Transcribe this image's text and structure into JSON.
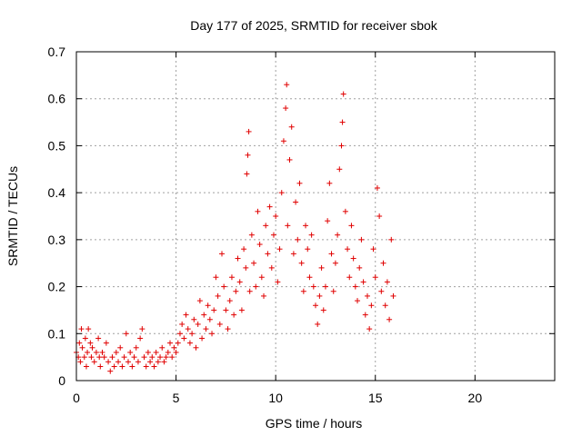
{
  "chart_data": {
    "type": "scatter",
    "title": "Day 177 of 2025, SRMTID for receiver sbok",
    "xlabel": "GPS time / hours",
    "ylabel": "SRMTID / TECUs",
    "xlim": [
      0,
      24
    ],
    "ylim": [
      0,
      0.7
    ],
    "x_ticks": [
      0,
      5,
      10,
      15,
      20
    ],
    "x_tick_labels": [
      "0",
      "5",
      "10",
      "15",
      "20"
    ],
    "y_ticks": [
      0,
      0.1,
      0.2,
      0.3,
      0.4,
      0.5,
      0.6,
      0.7
    ],
    "y_tick_labels": [
      "0",
      "0.1",
      "0.2",
      "0.3",
      "0.4",
      "0.5",
      "0.6",
      "0.7"
    ],
    "grid": true,
    "marker": "+",
    "marker_color": "#e00000",
    "series": [
      {
        "name": "SRMTID",
        "points": [
          [
            0.0,
            0.06
          ],
          [
            0.1,
            0.05
          ],
          [
            0.15,
            0.08
          ],
          [
            0.2,
            0.04
          ],
          [
            0.25,
            0.11
          ],
          [
            0.3,
            0.07
          ],
          [
            0.4,
            0.05
          ],
          [
            0.45,
            0.09
          ],
          [
            0.5,
            0.03
          ],
          [
            0.55,
            0.06
          ],
          [
            0.6,
            0.11
          ],
          [
            0.7,
            0.08
          ],
          [
            0.75,
            0.05
          ],
          [
            0.8,
            0.07
          ],
          [
            0.9,
            0.04
          ],
          [
            1.0,
            0.06
          ],
          [
            1.1,
            0.09
          ],
          [
            1.15,
            0.05
          ],
          [
            1.2,
            0.03
          ],
          [
            1.3,
            0.06
          ],
          [
            1.4,
            0.05
          ],
          [
            1.5,
            0.08
          ],
          [
            1.6,
            0.04
          ],
          [
            1.7,
            0.02
          ],
          [
            1.8,
            0.05
          ],
          [
            1.9,
            0.03
          ],
          [
            2.0,
            0.06
          ],
          [
            2.1,
            0.04
          ],
          [
            2.2,
            0.07
          ],
          [
            2.3,
            0.03
          ],
          [
            2.4,
            0.05
          ],
          [
            2.5,
            0.1
          ],
          [
            2.6,
            0.04
          ],
          [
            2.7,
            0.06
          ],
          [
            2.8,
            0.03
          ],
          [
            2.9,
            0.05
          ],
          [
            3.0,
            0.07
          ],
          [
            3.1,
            0.04
          ],
          [
            3.2,
            0.09
          ],
          [
            3.3,
            0.11
          ],
          [
            3.4,
            0.05
          ],
          [
            3.5,
            0.03
          ],
          [
            3.6,
            0.06
          ],
          [
            3.7,
            0.04
          ],
          [
            3.8,
            0.05
          ],
          [
            3.9,
            0.03
          ],
          [
            4.0,
            0.06
          ],
          [
            4.1,
            0.04
          ],
          [
            4.2,
            0.05
          ],
          [
            4.3,
            0.07
          ],
          [
            4.4,
            0.04
          ],
          [
            4.5,
            0.05
          ],
          [
            4.6,
            0.06
          ],
          [
            4.7,
            0.08
          ],
          [
            4.8,
            0.05
          ],
          [
            4.9,
            0.07
          ],
          [
            5.0,
            0.06
          ],
          [
            5.1,
            0.08
          ],
          [
            5.2,
            0.1
          ],
          [
            5.3,
            0.12
          ],
          [
            5.4,
            0.09
          ],
          [
            5.5,
            0.14
          ],
          [
            5.6,
            0.11
          ],
          [
            5.7,
            0.08
          ],
          [
            5.8,
            0.1
          ],
          [
            5.9,
            0.13
          ],
          [
            6.0,
            0.07
          ],
          [
            6.1,
            0.12
          ],
          [
            6.2,
            0.17
          ],
          [
            6.3,
            0.09
          ],
          [
            6.4,
            0.14
          ],
          [
            6.5,
            0.11
          ],
          [
            6.6,
            0.16
          ],
          [
            6.7,
            0.13
          ],
          [
            6.8,
            0.1
          ],
          [
            6.9,
            0.15
          ],
          [
            7.0,
            0.22
          ],
          [
            7.1,
            0.18
          ],
          [
            7.2,
            0.12
          ],
          [
            7.3,
            0.27
          ],
          [
            7.4,
            0.2
          ],
          [
            7.5,
            0.15
          ],
          [
            7.6,
            0.11
          ],
          [
            7.7,
            0.17
          ],
          [
            7.8,
            0.22
          ],
          [
            7.9,
            0.14
          ],
          [
            8.0,
            0.19
          ],
          [
            8.1,
            0.26
          ],
          [
            8.2,
            0.21
          ],
          [
            8.3,
            0.15
          ],
          [
            8.4,
            0.28
          ],
          [
            8.5,
            0.24
          ],
          [
            8.55,
            0.44
          ],
          [
            8.6,
            0.48
          ],
          [
            8.65,
            0.53
          ],
          [
            8.7,
            0.19
          ],
          [
            8.8,
            0.31
          ],
          [
            8.9,
            0.25
          ],
          [
            9.0,
            0.2
          ],
          [
            9.1,
            0.36
          ],
          [
            9.2,
            0.29
          ],
          [
            9.3,
            0.22
          ],
          [
            9.4,
            0.18
          ],
          [
            9.5,
            0.33
          ],
          [
            9.6,
            0.27
          ],
          [
            9.7,
            0.37
          ],
          [
            9.8,
            0.24
          ],
          [
            9.9,
            0.31
          ],
          [
            10.0,
            0.35
          ],
          [
            10.1,
            0.21
          ],
          [
            10.2,
            0.28
          ],
          [
            10.3,
            0.4
          ],
          [
            10.4,
            0.51
          ],
          [
            10.5,
            0.58
          ],
          [
            10.55,
            0.63
          ],
          [
            10.6,
            0.33
          ],
          [
            10.7,
            0.47
          ],
          [
            10.8,
            0.54
          ],
          [
            10.9,
            0.27
          ],
          [
            11.0,
            0.38
          ],
          [
            11.1,
            0.3
          ],
          [
            11.2,
            0.42
          ],
          [
            11.3,
            0.25
          ],
          [
            11.4,
            0.19
          ],
          [
            11.5,
            0.33
          ],
          [
            11.6,
            0.28
          ],
          [
            11.7,
            0.22
          ],
          [
            11.8,
            0.31
          ],
          [
            11.9,
            0.2
          ],
          [
            12.0,
            0.16
          ],
          [
            12.1,
            0.12
          ],
          [
            12.2,
            0.18
          ],
          [
            12.3,
            0.24
          ],
          [
            12.4,
            0.15
          ],
          [
            12.5,
            0.2
          ],
          [
            12.6,
            0.34
          ],
          [
            12.7,
            0.42
          ],
          [
            12.8,
            0.27
          ],
          [
            12.9,
            0.19
          ],
          [
            13.0,
            0.25
          ],
          [
            13.1,
            0.31
          ],
          [
            13.2,
            0.45
          ],
          [
            13.3,
            0.5
          ],
          [
            13.35,
            0.55
          ],
          [
            13.4,
            0.61
          ],
          [
            13.5,
            0.36
          ],
          [
            13.6,
            0.28
          ],
          [
            13.7,
            0.22
          ],
          [
            13.8,
            0.33
          ],
          [
            13.9,
            0.26
          ],
          [
            14.0,
            0.2
          ],
          [
            14.1,
            0.17
          ],
          [
            14.2,
            0.24
          ],
          [
            14.3,
            0.3
          ],
          [
            14.4,
            0.21
          ],
          [
            14.5,
            0.14
          ],
          [
            14.6,
            0.18
          ],
          [
            14.7,
            0.11
          ],
          [
            14.8,
            0.16
          ],
          [
            14.9,
            0.28
          ],
          [
            15.0,
            0.22
          ],
          [
            15.1,
            0.41
          ],
          [
            15.2,
            0.35
          ],
          [
            15.3,
            0.19
          ],
          [
            15.4,
            0.25
          ],
          [
            15.5,
            0.16
          ],
          [
            15.6,
            0.21
          ],
          [
            15.7,
            0.13
          ],
          [
            15.8,
            0.3
          ],
          [
            15.9,
            0.18
          ]
        ]
      }
    ]
  }
}
